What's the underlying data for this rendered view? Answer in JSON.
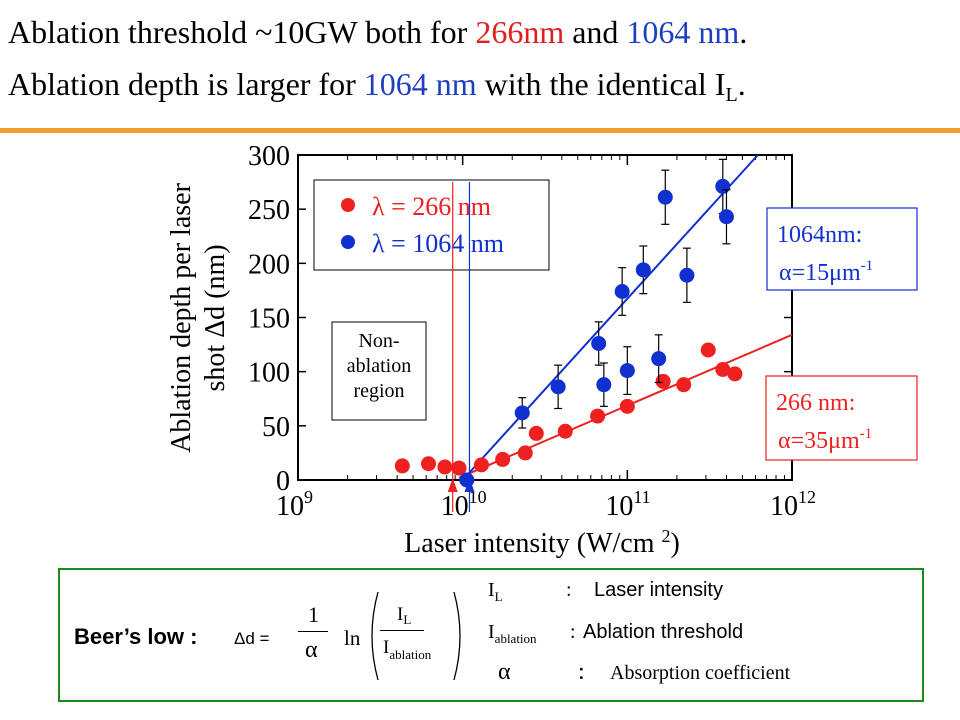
{
  "title": {
    "line1": {
      "a": "Ablation threshold ~10GW both for ",
      "red": "266nm",
      "b": " and ",
      "blue": "1064 nm",
      "c": "."
    },
    "line2": {
      "a": "Ablation depth is larger for ",
      "blue": "1064 nm",
      "b": " with the identical I",
      "sub": "L",
      "c": "."
    }
  },
  "colors": {
    "red_series": "#ee2020",
    "blue_series": "#1030d0",
    "accent_rule": "#f0a030",
    "formula_border": "#1a8a1a"
  },
  "chart_data": {
    "type": "scatter",
    "ylabel": "Ablation depth per laser shot Δd (nm)",
    "xlabel": "Laser intensity (W/cm 2)",
    "xscale": "log",
    "xlim": [
      1000000000.0,
      1000000000000.0
    ],
    "ylim": [
      0,
      300
    ],
    "yticks": [
      "0",
      "50",
      "100",
      "150",
      "200",
      "250",
      "300"
    ],
    "xticks": [
      {
        "value": 1000000000.0,
        "base": "10",
        "exp": "9"
      },
      {
        "value": 10000000000.0,
        "base": "10",
        "exp": "10"
      },
      {
        "value": 100000000000.0,
        "base": "10",
        "exp": "11"
      },
      {
        "value": 1000000000000.0,
        "base": "10",
        "exp": "12"
      }
    ],
    "legend": {
      "placement": "top-left",
      "items": [
        {
          "symbol": "λ",
          "text": " = 266 nm",
          "color": "#ee2020"
        },
        {
          "symbol": "λ",
          "text": " = 1064 nm",
          "color": "#1030d0"
        }
      ]
    },
    "series": [
      {
        "name": "λ = 266 nm",
        "color": "#ee2020",
        "points": [
          {
            "x": 4300000000.0,
            "y": 13
          },
          {
            "x": 6200000000.0,
            "y": 15
          },
          {
            "x": 7800000000.0,
            "y": 12
          },
          {
            "x": 9500000000.0,
            "y": 11
          },
          {
            "x": 13000000000.0,
            "y": 14
          },
          {
            "x": 17500000000.0,
            "y": 19
          },
          {
            "x": 24000000000.0,
            "y": 25
          },
          {
            "x": 28000000000.0,
            "y": 43
          },
          {
            "x": 42000000000.0,
            "y": 45
          },
          {
            "x": 66000000000.0,
            "y": 59
          },
          {
            "x": 100000000000.0,
            "y": 68
          },
          {
            "x": 165000000000.0,
            "y": 91
          },
          {
            "x": 220000000000.0,
            "y": 88
          },
          {
            "x": 310000000000.0,
            "y": 120
          },
          {
            "x": 380000000000.0,
            "y": 102
          },
          {
            "x": 450000000000.0,
            "y": 98
          }
        ],
        "fit": {
          "x": [
            9500000000.0,
            1000000000000.0
          ],
          "y": [
            2,
            134
          ]
        }
      },
      {
        "name": "λ = 1064 nm",
        "color": "#1030d0",
        "points": [
          {
            "x": 10600000000.0,
            "y": 0,
            "err": 0
          },
          {
            "x": 23000000000.0,
            "y": 62,
            "err": 14
          },
          {
            "x": 38000000000.0,
            "y": 86,
            "err": 20
          },
          {
            "x": 67000000000.0,
            "y": 126,
            "err": 20
          },
          {
            "x": 72000000000.0,
            "y": 88,
            "err": 20
          },
          {
            "x": 93000000000.0,
            "y": 174,
            "err": 22
          },
          {
            "x": 100000000000.0,
            "y": 101,
            "err": 22
          },
          {
            "x": 125000000000.0,
            "y": 194,
            "err": 22
          },
          {
            "x": 155000000000.0,
            "y": 112,
            "err": 22
          },
          {
            "x": 170000000000.0,
            "y": 261,
            "err": 25
          },
          {
            "x": 230000000000.0,
            "y": 189,
            "err": 25
          },
          {
            "x": 380000000000.0,
            "y": 271,
            "err": 25
          },
          {
            "x": 400000000000.0,
            "y": 243,
            "err": 25
          }
        ],
        "fit": {
          "x": [
            10000000000.0,
            620000000000.0
          ],
          "y": [
            0,
            300
          ]
        }
      }
    ],
    "threshold_lines": [
      {
        "x": 8700000000.0,
        "color": "#ee2020"
      },
      {
        "x": 11000000000.0,
        "color": "#1030d0"
      }
    ],
    "annotations": {
      "non_ablation": [
        "Non-",
        "ablation",
        "region"
      ],
      "blue_label": {
        "line1": "1064nm:",
        "alpha": "α",
        "eq": "=15",
        "mu": "μ",
        "m": "m",
        "exp": "-1"
      },
      "red_label": {
        "line1": "266 nm:",
        "alpha": "α",
        "eq": "=35",
        "mu": "μ",
        "m": "m",
        "exp": "-1"
      }
    }
  },
  "formula": {
    "label": "Beer’s low :",
    "delta_d": "Δd =",
    "one": "1",
    "alpha": "α",
    "ln": "ln",
    "num_main": "I",
    "num_sub": "L",
    "den_main": "I",
    "den_sub": "ablation",
    "defs": [
      {
        "sym": "I",
        "sub": "L",
        "colon": ":",
        "text": "Laser intensity"
      },
      {
        "sym": "I",
        "sub": "ablation",
        "colon": ":",
        "text": "Ablation threshold"
      },
      {
        "sym": "α",
        "sub": "",
        "colon": ":",
        "text": "Absorption coefficient"
      }
    ]
  }
}
